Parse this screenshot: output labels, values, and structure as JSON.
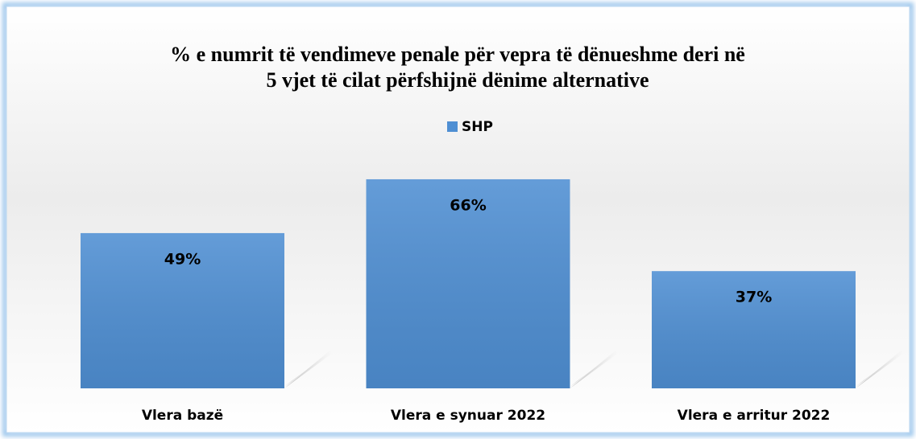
{
  "chart_data": {
    "type": "bar",
    "title": [
      "% e numrit të vendimeve penale për vepra të dënueshme deri në",
      "5 vjet të cilat përfshijnë dënime alternative"
    ],
    "categories": [
      "Vlera bazë",
      "Vlera e synuar 2022",
      "Vlera e arritur 2022"
    ],
    "series": [
      {
        "name": "SHP",
        "color": "#4f8fd3",
        "values": [
          49,
          66,
          37
        ],
        "value_labels": [
          "49%",
          "66%",
          "37%"
        ]
      }
    ]
  }
}
